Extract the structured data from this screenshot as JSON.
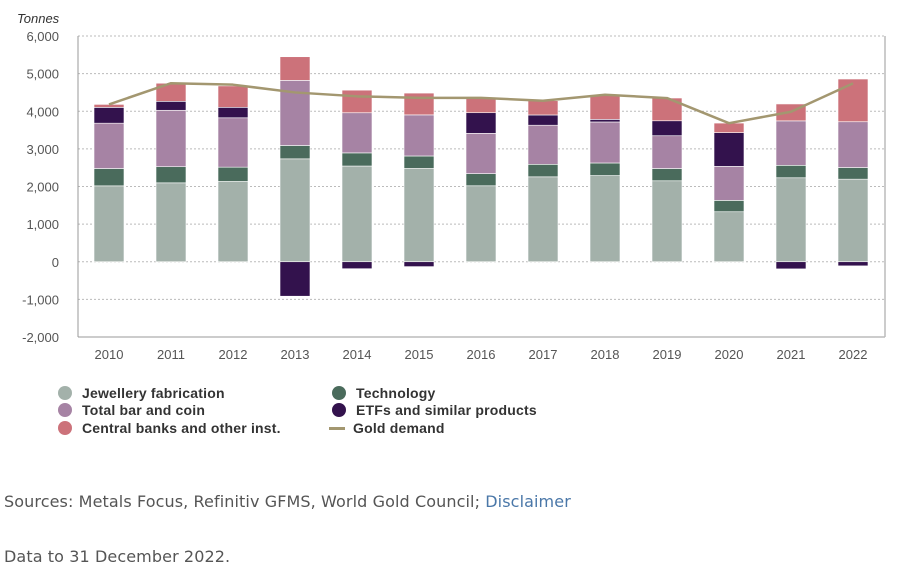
{
  "chart_data": {
    "type": "bar",
    "stacked": true,
    "title": "",
    "ylabel": "Tonnes",
    "xlabel": "",
    "ylim": [
      -2000,
      6000
    ],
    "yticks": [
      6000,
      5000,
      4000,
      3000,
      2000,
      1000,
      0,
      -1000,
      -2000
    ],
    "ytick_labels": [
      "6,000",
      "5,000",
      "4,000",
      "3,000",
      "2,000",
      "1,000",
      "0",
      "-1,000",
      "-2,000"
    ],
    "grid": true,
    "legend_position": "bottom-left",
    "categories": [
      "2010",
      "2011",
      "2012",
      "2013",
      "2014",
      "2015",
      "2016",
      "2017",
      "2018",
      "2019",
      "2020",
      "2021",
      "2022"
    ],
    "series": [
      {
        "name": "Jewellery fabrication",
        "type": "bar",
        "color": "#a3b1aa",
        "values": [
          2017,
          2097,
          2133,
          2735,
          2544,
          2479,
          2019,
          2257,
          2290,
          2152,
          1329,
          2232,
          2195
        ]
      },
      {
        "name": "Technology",
        "type": "bar",
        "color": "#4a6b5c",
        "values": [
          461,
          429,
          381,
          355,
          349,
          332,
          323,
          333,
          335,
          326,
          302,
          331,
          309
        ]
      },
      {
        "name": "Total bar and coin",
        "type": "bar",
        "color": "#a683a4",
        "values": [
          1205,
          1500,
          1312,
          1730,
          1067,
          1092,
          1072,
          1039,
          1090,
          871,
          906,
          1181,
          1217
        ]
      },
      {
        "name": "ETFs and similar products",
        "type": "bar",
        "color": "#33124d",
        "values": [
          420,
          238,
          279,
          -916,
          -185,
          -129,
          547,
          272,
          69,
          398,
          894,
          -190,
          -110
        ]
      },
      {
        "name": "Central banks and other inst.",
        "type": "bar",
        "color": "#cc727a",
        "values": [
          79,
          481,
          569,
          629,
          601,
          580,
          395,
          379,
          656,
          605,
          255,
          450,
          1136
        ]
      },
      {
        "name": "Gold demand",
        "type": "line",
        "color": "#a39770",
        "values": [
          4182,
          4745,
          4706,
          4500,
          4397,
          4357,
          4356,
          4280,
          4440,
          4350,
          3683,
          3986,
          4741
        ]
      }
    ]
  },
  "legend": {
    "items": [
      {
        "label": "Jewellery fabrication",
        "color": "#a3b1aa",
        "marker": "circle"
      },
      {
        "label": "Technology",
        "color": "#4a6b5c",
        "marker": "circle"
      },
      {
        "label": "Total bar and coin",
        "color": "#a683a4",
        "marker": "circle"
      },
      {
        "label": "ETFs and similar products",
        "color": "#33124d",
        "marker": "circle"
      },
      {
        "label": "Central banks and other inst.",
        "color": "#cc727a",
        "marker": "circle"
      },
      {
        "label": "Gold demand",
        "color": "#a39770",
        "marker": "line"
      }
    ]
  },
  "footer": {
    "sources_prefix": "Sources: Metals Focus, Refinitiv GFMS, World Gold Council; ",
    "disclaimer_link": "Disclaimer",
    "data_note": "Data to 31 December 2022."
  }
}
